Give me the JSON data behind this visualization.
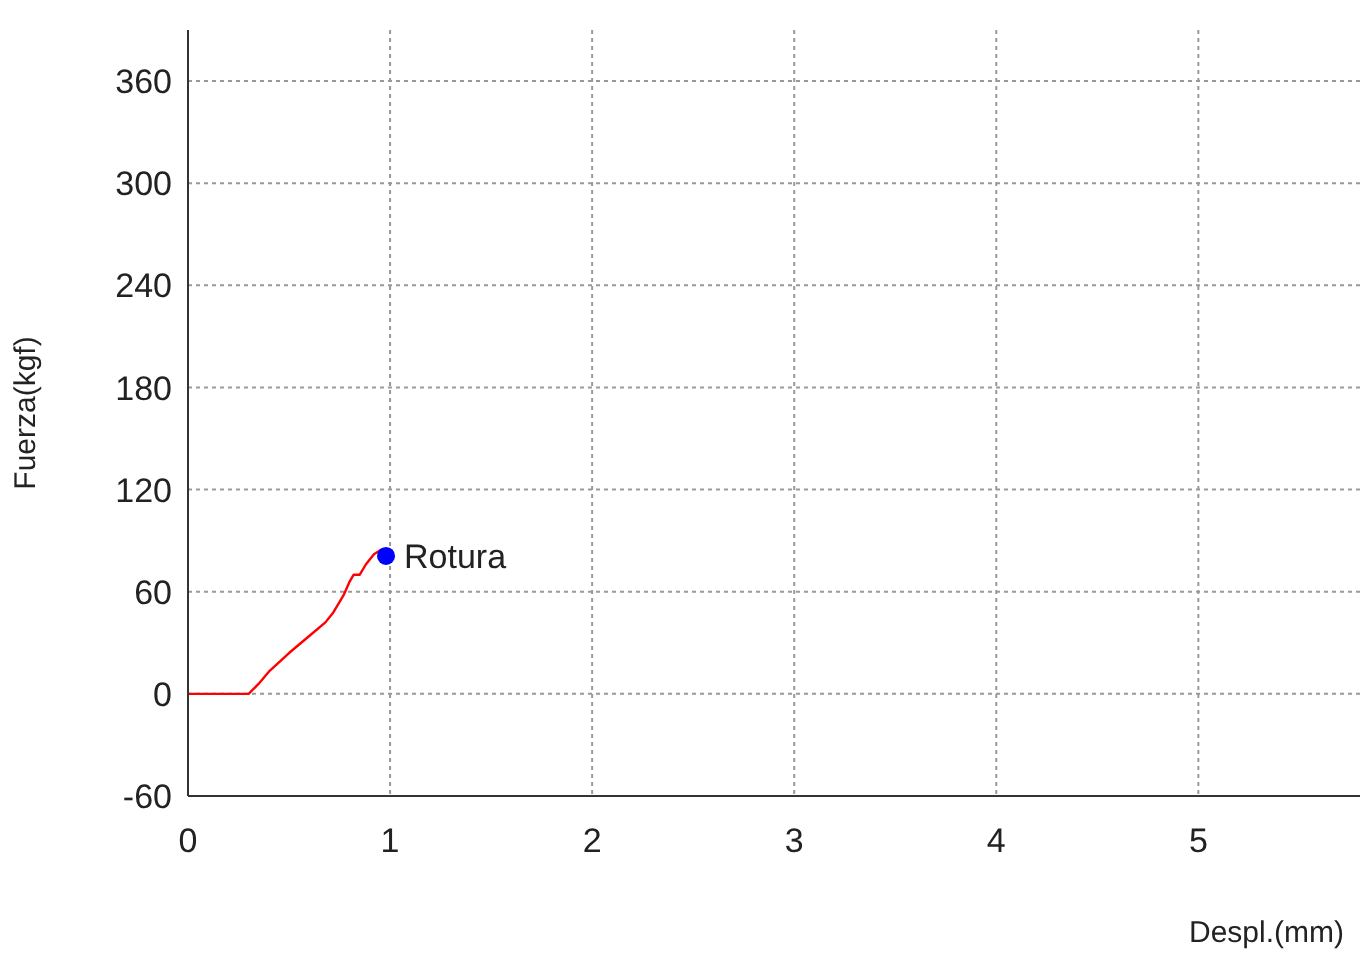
{
  "chart_data": {
    "type": "line",
    "xlabel": "Despl.(mm)",
    "ylabel": "Fuerza(kgf)",
    "xlim": [
      0,
      5.8
    ],
    "xticks": [
      0,
      1,
      2,
      3,
      4,
      5
    ],
    "ylim": [
      -60,
      390
    ],
    "yticks": [
      -60,
      0,
      60,
      120,
      180,
      240,
      300,
      360
    ],
    "grid": true,
    "line_style": "solid",
    "series": [
      {
        "color": "#ff0000",
        "marker": "none",
        "x": [
          0,
          0.1,
          0.2,
          0.3,
          0.35,
          0.4,
          0.5,
          0.6,
          0.68,
          0.72,
          0.77,
          0.8,
          0.82,
          0.85,
          0.88,
          0.92,
          0.96
        ],
        "values": [
          0,
          0,
          0,
          0,
          6,
          13,
          24,
          34,
          42,
          48,
          58,
          66,
          70,
          70,
          76,
          82,
          85
        ]
      },
      {
        "type": "scatter",
        "color": "#0000ff",
        "marker": "circle",
        "x": [
          0.98
        ],
        "values": [
          81
        ]
      }
    ],
    "annotations": [
      {
        "text": "Rotura",
        "x": 0.98,
        "y": 81
      }
    ]
  }
}
